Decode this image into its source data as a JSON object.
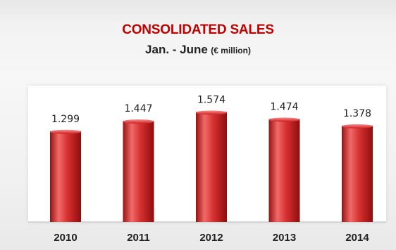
{
  "title": "CONSOLIDATED SALES",
  "subtitle": {
    "main": "Jan. - June",
    "unit": "(€ million)"
  },
  "colors": {
    "title": "#c00000",
    "bar_light": "#ef6767",
    "bar_mid": "#d82a2a",
    "bar_dark": "#8f0d0d",
    "text": "#222222"
  },
  "chart_data": {
    "type": "bar",
    "title": "CONSOLIDATED SALES",
    "subtitle": "Jan. - June (€ million)",
    "categories": [
      "2010",
      "2011",
      "2012",
      "2013",
      "2014"
    ],
    "values": [
      1.299,
      1.447,
      1.574,
      1.474,
      1.378
    ],
    "value_labels": [
      "1.299",
      "1.447",
      "1.574",
      "1.474",
      "1.378"
    ],
    "xlabel": "",
    "ylabel": "",
    "ylim": [
      0,
      1.95
    ],
    "grid": false,
    "legend": "none"
  }
}
